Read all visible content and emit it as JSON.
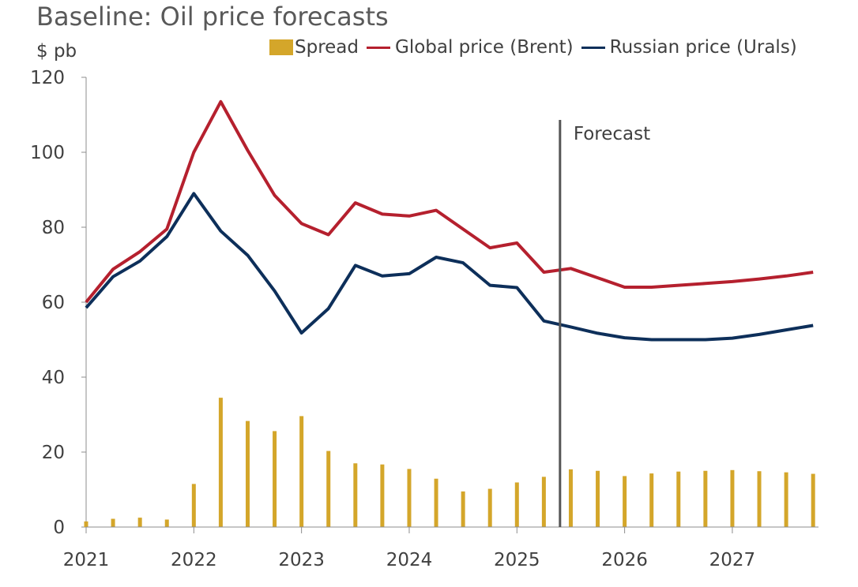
{
  "chart_data": {
    "type": "bar+line",
    "title": "Baseline: Oil price forecasts",
    "ylabel": "$ pb",
    "xlabel": "",
    "ylim": [
      0,
      120
    ],
    "yticks": [
      0,
      20,
      40,
      60,
      80,
      100,
      120
    ],
    "xlim": [
      2021,
      2027.8
    ],
    "xticks": [
      "2021",
      "2022",
      "2023",
      "2024",
      "2025",
      "2026",
      "2027"
    ],
    "forecast_start": 2025.4,
    "annotation": "Forecast",
    "legend": [
      "Spread",
      "Global price (Brent)",
      "Russian price (Urals)"
    ],
    "colors": {
      "spread": "#d4a62a",
      "brent": "#b5202e",
      "urals": "#0d2f5a",
      "forecast_line": "#555555",
      "axis": "#8c8c8c"
    },
    "x": [
      2021.0,
      2021.25,
      2021.5,
      2021.75,
      2022.0,
      2022.25,
      2022.5,
      2022.75,
      2023.0,
      2023.25,
      2023.5,
      2023.75,
      2024.0,
      2024.25,
      2024.5,
      2024.75,
      2025.0,
      2025.25,
      2025.5,
      2025.75,
      2026.0,
      2026.25,
      2026.5,
      2026.75,
      2027.0,
      2027.25,
      2027.5,
      2027.75
    ],
    "series": [
      {
        "name": "Spread",
        "kind": "bar",
        "values": [
          1.5,
          2.2,
          2.5,
          2.0,
          11.5,
          34.5,
          28.3,
          25.6,
          29.6,
          20.3,
          17.0,
          16.7,
          15.5,
          12.9,
          9.5,
          10.2,
          11.9,
          13.4,
          15.4,
          15.0,
          13.6,
          14.3,
          14.8,
          15.0,
          15.2,
          14.9,
          14.6,
          14.2
        ]
      },
      {
        "name": "Global price (Brent)",
        "kind": "line",
        "values": [
          60.0,
          68.8,
          73.5,
          79.5,
          100.0,
          113.5,
          100.5,
          88.5,
          81.0,
          78.0,
          86.5,
          83.5,
          83.0,
          84.5,
          79.5,
          74.5,
          75.8,
          68.0,
          69.0,
          66.5,
          64.0,
          64.0,
          64.5,
          65.0,
          65.5,
          66.2,
          67.0,
          68.0
        ]
      },
      {
        "name": "Russian price (Urals)",
        "kind": "line",
        "values": [
          58.5,
          66.8,
          71.0,
          77.5,
          89.0,
          79.0,
          72.5,
          63.0,
          51.8,
          58.3,
          69.8,
          67.0,
          67.6,
          72.0,
          70.5,
          64.5,
          63.9,
          55.0,
          53.4,
          51.7,
          50.5,
          50.0,
          50.0,
          50.0,
          50.4,
          51.4,
          52.6,
          53.8
        ]
      }
    ]
  }
}
